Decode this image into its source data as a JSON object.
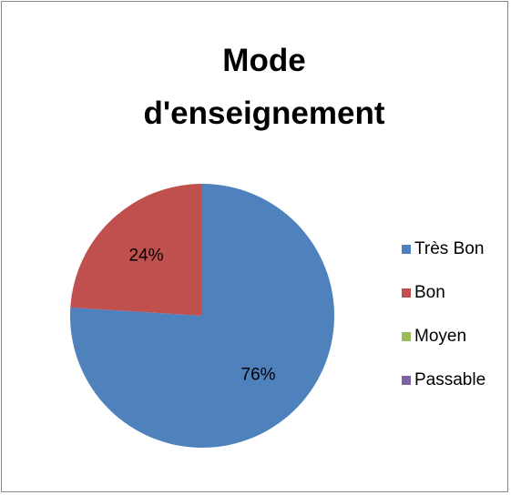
{
  "chart_data": {
    "type": "pie",
    "title": "Mode d'enseignement",
    "categories": [
      "Très Bon",
      "Bon",
      "Moyen",
      "Passable"
    ],
    "values": [
      76,
      24,
      0,
      0
    ],
    "value_labels": [
      "76%",
      "24%",
      null,
      null
    ],
    "colors": [
      "#4f81bd",
      "#c0504d",
      "#9bbb59",
      "#8064a2"
    ],
    "legend": "right"
  }
}
